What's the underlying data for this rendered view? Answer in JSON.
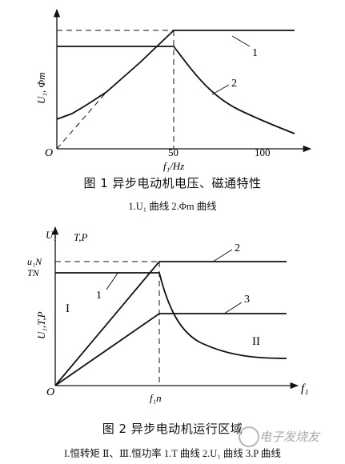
{
  "figure1": {
    "y_label": "U₁, Φm",
    "x_label": "f₁/Hz",
    "origin": "O",
    "x_ticks": [
      "50",
      "100"
    ],
    "curve_labels": [
      "1",
      "2"
    ],
    "caption": "图 1   异步电动机电压、磁通特性",
    "subcaption": "1.U₁ 曲线 2.Φm 曲线"
  },
  "figure2": {
    "y_axis_label": "U₁",
    "y_axis_label2": "T,P",
    "side_label": "U₁,T,P",
    "y_ticks": [
      "u₁N",
      "TN"
    ],
    "x_label": "f₁",
    "x_tick": "f₁n",
    "origin": "O",
    "curve_labels": [
      "1",
      "2",
      "3"
    ],
    "region_labels": [
      "I",
      "II"
    ],
    "caption": "图 2   异步电动机运行区域",
    "subcaption": "I.恒转矩 Ⅱ、Ⅲ.恒功率 1.T 曲线 2.U₁ 曲线 3.P 曲线"
  },
  "watermark": "电子发烧友"
}
